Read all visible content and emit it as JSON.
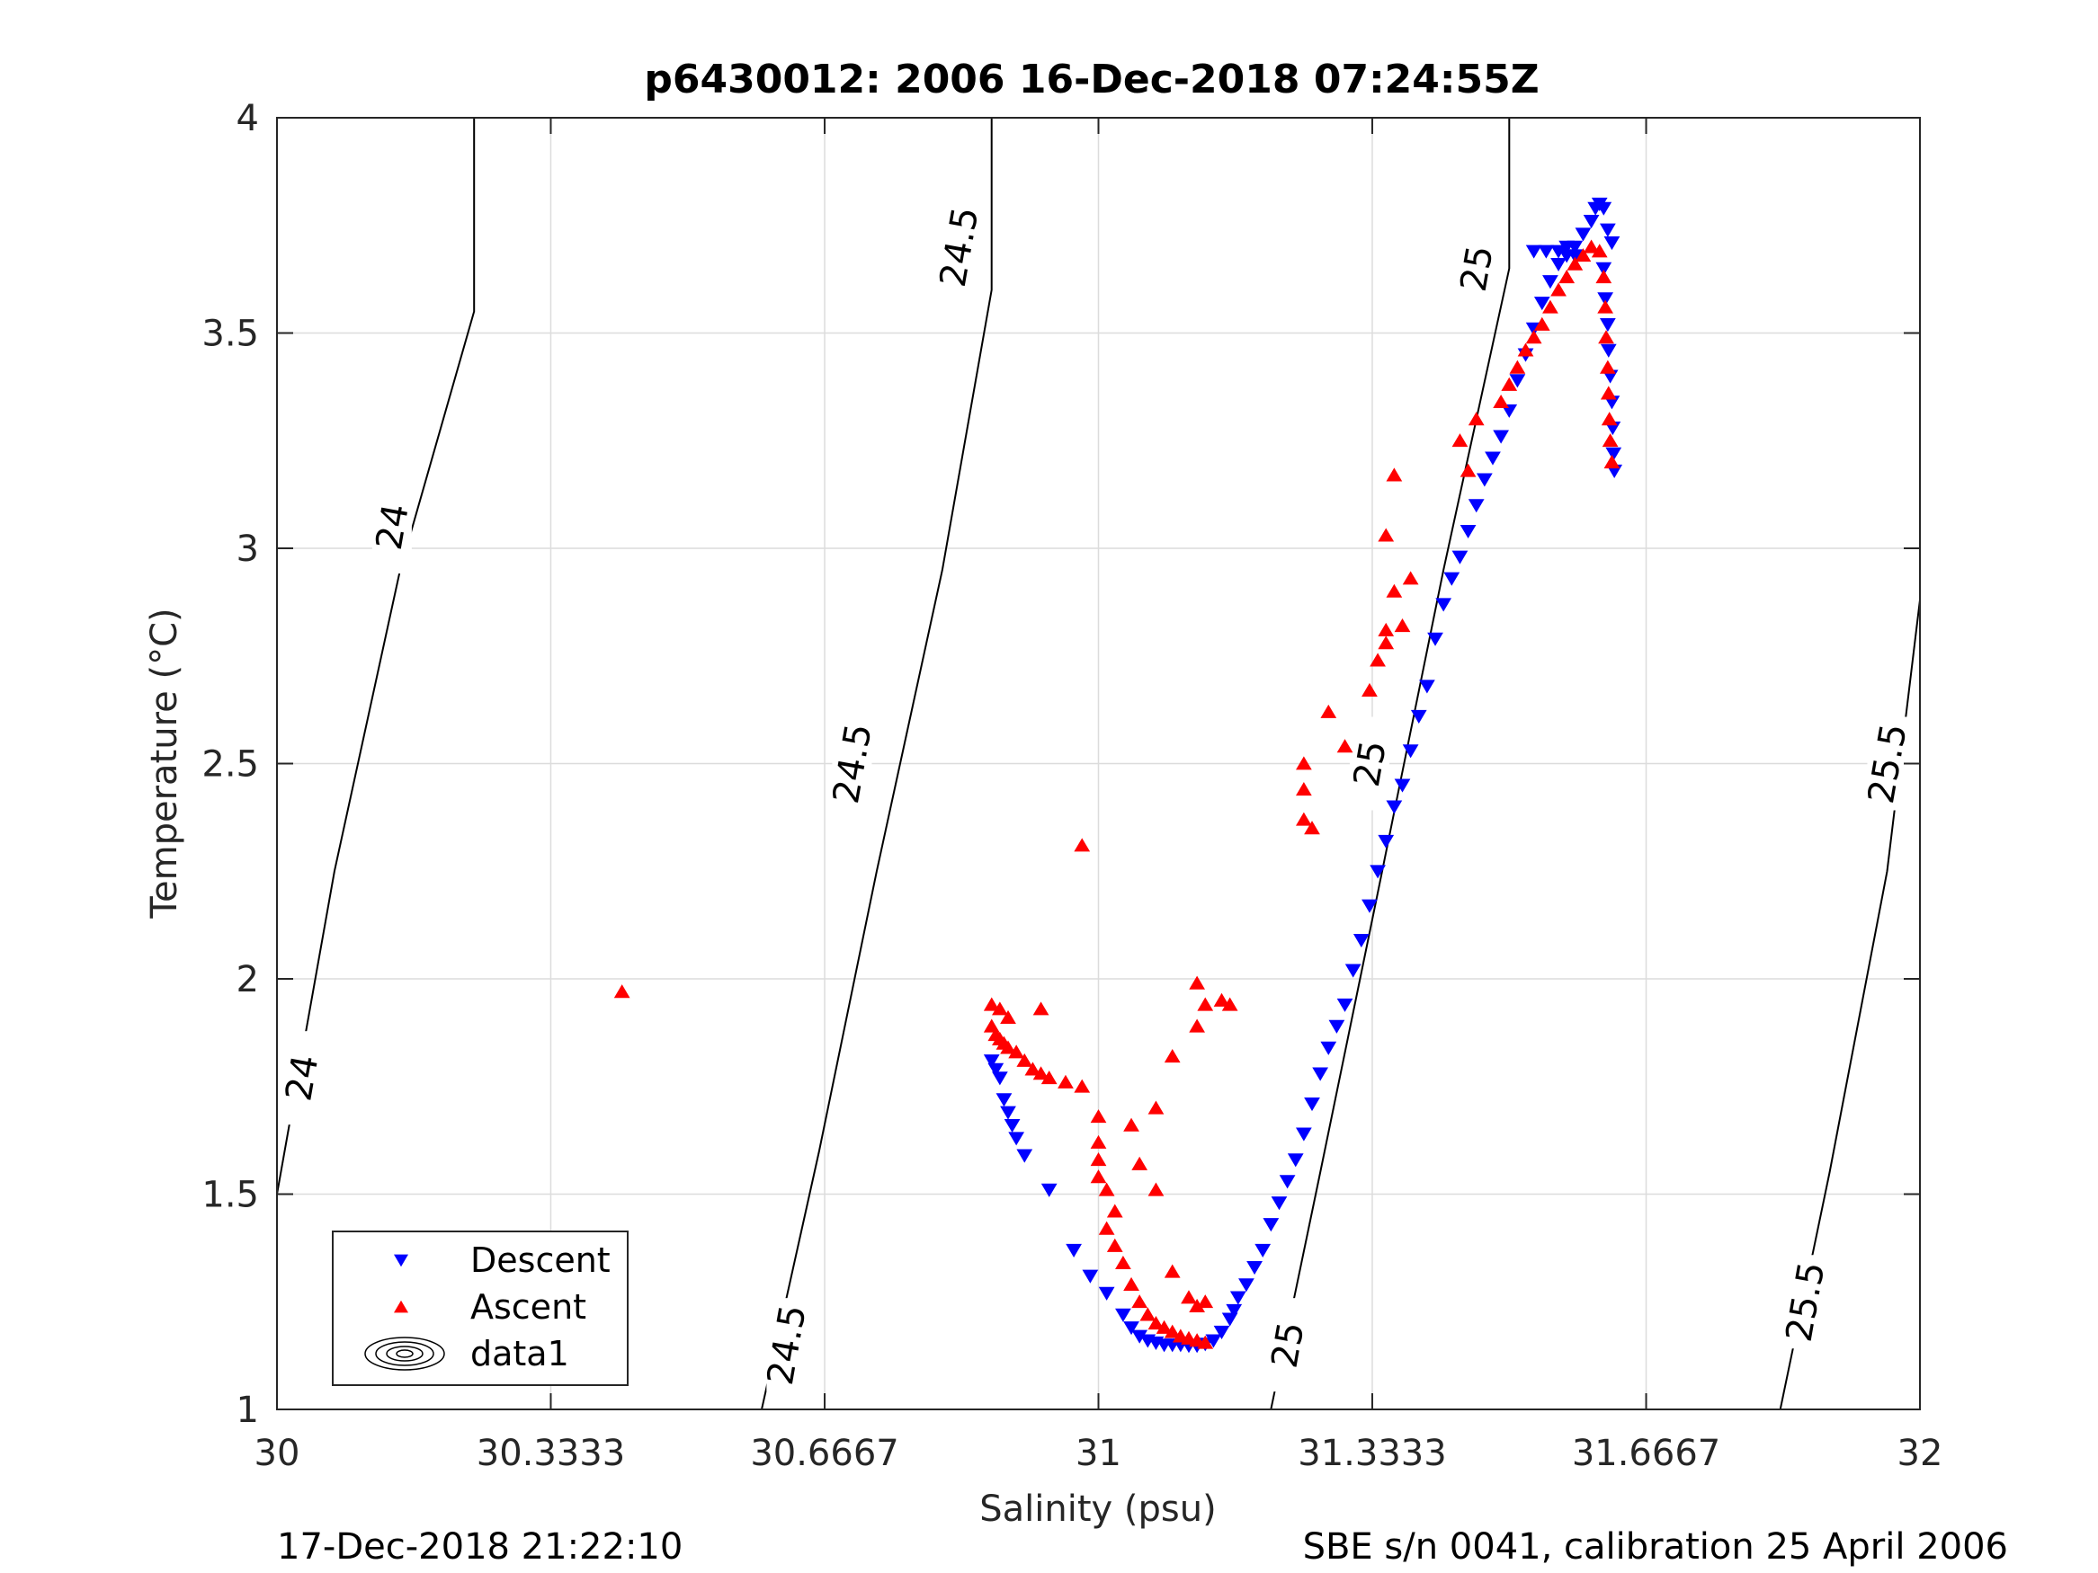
{
  "title": "p6430012:  2006 16-Dec-2018 07:24:55Z",
  "footer_left": "17-Dec-2018 21:22:10",
  "footer_right": "SBE s/n 0041, calibration 25 April 2006",
  "chart_data": {
    "type": "scatter",
    "title": "p6430012:  2006 16-Dec-2018 07:24:55Z",
    "xlabel": "Salinity (psu)",
    "ylabel": "Temperature (°C)",
    "xlim": [
      30,
      32
    ],
    "ylim": [
      1,
      4
    ],
    "x_ticks": [
      30,
      30.3333,
      30.6667,
      31,
      31.3333,
      31.6667,
      32
    ],
    "x_tick_labels": [
      "30",
      "30.3333",
      "30.6667",
      "31",
      "31.3333",
      "31.6667",
      "32"
    ],
    "y_ticks": [
      1,
      1.5,
      2,
      2.5,
      3,
      3.5,
      4
    ],
    "y_tick_labels": [
      "1",
      "1.5",
      "2",
      "2.5",
      "3",
      "3.5",
      "4"
    ],
    "grid": true,
    "legend_position": "bottom-left",
    "legend": [
      "Descent",
      "Ascent",
      "data1"
    ],
    "colors": {
      "descent": "#0000ff",
      "ascent": "#ff0000",
      "contour": "#000000"
    },
    "series": [
      {
        "name": "Descent",
        "marker": "triangle-down",
        "color": "#0000ff",
        "points": [
          [
            30.87,
            1.81
          ],
          [
            30.875,
            1.79
          ],
          [
            30.88,
            1.77
          ],
          [
            30.885,
            1.72
          ],
          [
            30.89,
            1.69
          ],
          [
            30.895,
            1.66
          ],
          [
            30.9,
            1.63
          ],
          [
            30.91,
            1.59
          ],
          [
            30.94,
            1.51
          ],
          [
            30.97,
            1.37
          ],
          [
            30.99,
            1.31
          ],
          [
            31.01,
            1.27
          ],
          [
            31.03,
            1.22
          ],
          [
            31.04,
            1.19
          ],
          [
            31.05,
            1.17
          ],
          [
            31.06,
            1.16
          ],
          [
            31.07,
            1.155
          ],
          [
            31.08,
            1.15
          ],
          [
            31.09,
            1.15
          ],
          [
            31.1,
            1.15
          ],
          [
            31.11,
            1.148
          ],
          [
            31.12,
            1.148
          ],
          [
            31.13,
            1.152
          ],
          [
            31.14,
            1.16
          ],
          [
            31.15,
            1.18
          ],
          [
            31.16,
            1.21
          ],
          [
            31.165,
            1.23
          ],
          [
            31.17,
            1.26
          ],
          [
            31.18,
            1.29
          ],
          [
            31.19,
            1.33
          ],
          [
            31.2,
            1.37
          ],
          [
            31.21,
            1.43
          ],
          [
            31.22,
            1.48
          ],
          [
            31.23,
            1.53
          ],
          [
            31.24,
            1.58
          ],
          [
            31.25,
            1.64
          ],
          [
            31.26,
            1.71
          ],
          [
            31.27,
            1.78
          ],
          [
            31.28,
            1.84
          ],
          [
            31.29,
            1.89
          ],
          [
            31.3,
            1.94
          ],
          [
            31.31,
            2.02
          ],
          [
            31.32,
            2.09
          ],
          [
            31.33,
            2.17
          ],
          [
            31.34,
            2.25
          ],
          [
            31.35,
            2.32
          ],
          [
            31.36,
            2.4
          ],
          [
            31.37,
            2.45
          ],
          [
            31.38,
            2.53
          ],
          [
            31.39,
            2.61
          ],
          [
            31.4,
            2.68
          ],
          [
            31.41,
            2.79
          ],
          [
            31.42,
            2.87
          ],
          [
            31.43,
            2.93
          ],
          [
            31.44,
            2.98
          ],
          [
            31.45,
            3.04
          ],
          [
            31.46,
            3.1
          ],
          [
            31.47,
            3.16
          ],
          [
            31.48,
            3.21
          ],
          [
            31.49,
            3.26
          ],
          [
            31.5,
            3.32
          ],
          [
            31.51,
            3.39
          ],
          [
            31.52,
            3.45
          ],
          [
            31.53,
            3.51
          ],
          [
            31.54,
            3.57
          ],
          [
            31.55,
            3.62
          ],
          [
            31.56,
            3.66
          ],
          [
            31.57,
            3.68
          ],
          [
            31.58,
            3.7
          ],
          [
            31.59,
            3.73
          ],
          [
            31.6,
            3.76
          ],
          [
            31.605,
            3.79
          ],
          [
            31.61,
            3.8
          ],
          [
            31.615,
            3.79
          ],
          [
            31.62,
            3.74
          ],
          [
            31.625,
            3.71
          ],
          [
            31.53,
            3.69
          ],
          [
            31.545,
            3.69
          ],
          [
            31.56,
            3.69
          ],
          [
            31.57,
            3.7
          ],
          [
            31.615,
            3.65
          ],
          [
            31.617,
            3.58
          ],
          [
            31.62,
            3.52
          ],
          [
            31.621,
            3.46
          ],
          [
            31.623,
            3.4
          ],
          [
            31.625,
            3.34
          ],
          [
            31.626,
            3.28
          ],
          [
            31.627,
            3.22
          ],
          [
            31.628,
            3.18
          ],
          [
            31.58,
            3.68
          ]
        ]
      },
      {
        "name": "Ascent",
        "marker": "triangle-up",
        "color": "#ff0000",
        "points": [
          [
            30.42,
            1.97
          ],
          [
            30.87,
            1.94
          ],
          [
            30.88,
            1.93
          ],
          [
            30.89,
            1.91
          ],
          [
            30.87,
            1.89
          ],
          [
            30.875,
            1.87
          ],
          [
            30.88,
            1.86
          ],
          [
            30.885,
            1.85
          ],
          [
            30.89,
            1.84
          ],
          [
            30.9,
            1.83
          ],
          [
            30.91,
            1.81
          ],
          [
            30.92,
            1.79
          ],
          [
            30.93,
            1.78
          ],
          [
            30.94,
            1.77
          ],
          [
            30.96,
            1.76
          ],
          [
            30.98,
            1.75
          ],
          [
            30.93,
            1.93
          ],
          [
            31.0,
            1.68
          ],
          [
            31.0,
            1.62
          ],
          [
            31.0,
            1.58
          ],
          [
            31.0,
            1.54
          ],
          [
            31.01,
            1.51
          ],
          [
            31.02,
            1.46
          ],
          [
            31.01,
            1.42
          ],
          [
            31.02,
            1.38
          ],
          [
            31.03,
            1.34
          ],
          [
            31.04,
            1.29
          ],
          [
            31.05,
            1.25
          ],
          [
            31.06,
            1.22
          ],
          [
            31.07,
            1.2
          ],
          [
            31.08,
            1.19
          ],
          [
            31.09,
            1.18
          ],
          [
            31.1,
            1.17
          ],
          [
            31.11,
            1.165
          ],
          [
            31.12,
            1.16
          ],
          [
            31.13,
            1.155
          ],
          [
            31.11,
            1.26
          ],
          [
            31.12,
            1.24
          ],
          [
            31.13,
            1.25
          ],
          [
            31.09,
            1.32
          ],
          [
            31.07,
            1.51
          ],
          [
            31.05,
            1.57
          ],
          [
            31.04,
            1.66
          ],
          [
            31.07,
            1.7
          ],
          [
            31.09,
            1.82
          ],
          [
            31.12,
            1.89
          ],
          [
            31.13,
            1.94
          ],
          [
            31.12,
            1.99
          ],
          [
            31.15,
            1.95
          ],
          [
            31.16,
            1.94
          ],
          [
            30.98,
            2.31
          ],
          [
            31.25,
            2.37
          ],
          [
            31.25,
            2.44
          ],
          [
            31.25,
            2.5
          ],
          [
            31.26,
            2.35
          ],
          [
            31.28,
            2.62
          ],
          [
            31.3,
            2.54
          ],
          [
            31.33,
            2.67
          ],
          [
            31.34,
            2.74
          ],
          [
            31.35,
            2.81
          ],
          [
            31.35,
            3.03
          ],
          [
            31.36,
            3.17
          ],
          [
            31.37,
            2.82
          ],
          [
            31.38,
            2.93
          ],
          [
            31.36,
            2.9
          ],
          [
            31.35,
            2.78
          ],
          [
            31.44,
            3.25
          ],
          [
            31.45,
            3.18
          ],
          [
            31.49,
            3.34
          ],
          [
            31.5,
            3.38
          ],
          [
            31.51,
            3.42
          ],
          [
            31.52,
            3.46
          ],
          [
            31.53,
            3.49
          ],
          [
            31.54,
            3.52
          ],
          [
            31.55,
            3.56
          ],
          [
            31.56,
            3.6
          ],
          [
            31.57,
            3.63
          ],
          [
            31.58,
            3.66
          ],
          [
            31.59,
            3.68
          ],
          [
            31.6,
            3.7
          ],
          [
            31.61,
            3.69
          ],
          [
            31.615,
            3.63
          ],
          [
            31.617,
            3.56
          ],
          [
            31.618,
            3.49
          ],
          [
            31.62,
            3.42
          ],
          [
            31.621,
            3.36
          ],
          [
            31.622,
            3.3
          ],
          [
            31.623,
            3.25
          ],
          [
            31.625,
            3.2
          ],
          [
            31.46,
            3.3
          ]
        ]
      }
    ],
    "isopycnals": [
      {
        "label": "24",
        "points": [
          [
            30.0,
            1.5
          ],
          [
            30.07,
            2.25
          ],
          [
            30.15,
            2.95
          ],
          [
            30.24,
            3.55
          ],
          [
            30.24,
            4.0
          ]
        ],
        "label_positions": [
          [
            30.03,
            1.77
          ],
          [
            30.14,
            3.05
          ]
        ]
      },
      {
        "label": "24.5",
        "points": [
          [
            30.59,
            1.0
          ],
          [
            30.66,
            1.6
          ],
          [
            30.73,
            2.25
          ],
          [
            30.81,
            2.95
          ],
          [
            30.87,
            3.6
          ],
          [
            30.87,
            4.0
          ]
        ],
        "label_positions": [
          [
            30.62,
            1.15
          ],
          [
            30.7,
            2.5
          ],
          [
            30.83,
            3.7
          ]
        ]
      },
      {
        "label": "25",
        "points": [
          [
            31.21,
            1.0
          ],
          [
            31.27,
            1.55
          ],
          [
            31.34,
            2.2
          ],
          [
            31.42,
            2.95
          ],
          [
            31.5,
            3.65
          ],
          [
            31.5,
            4.0
          ]
        ],
        "label_positions": [
          [
            31.23,
            1.15
          ],
          [
            31.33,
            2.5
          ],
          [
            31.46,
            3.65
          ]
        ]
      },
      {
        "label": "25.5",
        "points": [
          [
            31.83,
            1.0
          ],
          [
            31.89,
            1.55
          ],
          [
            31.96,
            2.25
          ],
          [
            32.0,
            2.88
          ]
        ],
        "label_positions": [
          [
            31.86,
            1.25
          ],
          [
            31.96,
            2.5
          ]
        ]
      }
    ]
  }
}
